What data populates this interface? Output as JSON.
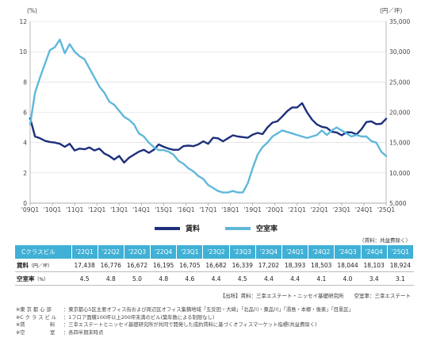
{
  "chart_data": {
    "type": "line",
    "left_unit": "(%)",
    "right_unit": "(円／坪)",
    "left_ylim": [
      0,
      12
    ],
    "left_ticks": [
      "0",
      "2",
      "4",
      "6",
      "8",
      "10",
      "12"
    ],
    "right_ylim": [
      5000,
      35000
    ],
    "right_ticks": [
      "5,000",
      "10,000",
      "15,000",
      "20,000",
      "25,000",
      "30,000",
      "35,000"
    ],
    "x_labels": [
      "'09Q1",
      "'10Q1",
      "'11Q1",
      "'12Q1",
      "'13Q1",
      "'14Q1",
      "'15Q1",
      "'16Q1",
      "'17Q1",
      "'18Q1",
      "'19Q1",
      "'20Q1",
      "'21Q1",
      "'22Q1",
      "'23Q1",
      "'24Q1",
      "'25Q1"
    ],
    "x_start": 2009,
    "x_end": 2025,
    "series": [
      {
        "name": "賃料",
        "axis": "right",
        "color": "#1d2f7c",
        "values": [
          19000,
          16000,
          15700,
          15300,
          15100,
          15000,
          14800,
          14300,
          14800,
          13700,
          14000,
          13900,
          14200,
          13700,
          14000,
          13200,
          12800,
          12200,
          12800,
          11700,
          12500,
          13000,
          13500,
          13800,
          13300,
          13800,
          14700,
          14300,
          14000,
          13800,
          13800,
          14400,
          14500,
          14400,
          14700,
          15200,
          14800,
          15800,
          15700,
          15200,
          15700,
          16200,
          16000,
          15900,
          15800,
          16300,
          16600,
          16400,
          17500,
          18300,
          18500,
          19300,
          20200,
          20800,
          20800,
          21500,
          20000,
          18800,
          18000,
          17600,
          17438,
          16776,
          16672,
          16195,
          16705,
          16682,
          16339,
          17202,
          18393,
          18503,
          18044,
          18103,
          18924
        ]
      },
      {
        "name": "空室率",
        "axis": "left",
        "color": "#5fb8db",
        "values": [
          5.2,
          7.3,
          8.3,
          9.2,
          10.1,
          10.3,
          10.8,
          9.9,
          10.5,
          10.0,
          9.7,
          9.5,
          8.9,
          8.3,
          7.7,
          7.3,
          6.7,
          6.5,
          6.1,
          5.7,
          5.5,
          5.2,
          4.6,
          4.4,
          4.0,
          3.7,
          3.5,
          3.5,
          3.4,
          3.2,
          2.8,
          2.6,
          2.3,
          2.1,
          1.8,
          1.6,
          1.2,
          1.0,
          0.8,
          0.7,
          0.7,
          0.8,
          0.7,
          0.7,
          1.3,
          2.3,
          3.2,
          3.7,
          4.0,
          4.4,
          4.6,
          4.8,
          4.7,
          4.6,
          4.5,
          4.4,
          4.3,
          4.4,
          4.5,
          4.8,
          4.5,
          4.8,
          5.0,
          4.8,
          4.6,
          4.4,
          4.5,
          4.4,
          4.4,
          4.1,
          4.0,
          3.4,
          3.1
        ]
      }
    ],
    "grid": true
  },
  "legend": {
    "rent": "賃料",
    "vacancy": "空室率"
  },
  "table": {
    "source_top": "（賃料：共益費除く）",
    "header": "Cクラスビル",
    "quarters": [
      "'22Q1",
      "'22Q2",
      "'22Q3",
      "'22Q4",
      "'23Q1",
      "'23Q2",
      "'23Q3",
      "'23Q4",
      "'24Q1",
      "'24Q2",
      "'24Q3",
      "'24Q4",
      "'25Q1"
    ],
    "rent_label": "賃料",
    "rent_unit": "（円／坪）",
    "rent": [
      "17,438",
      "16,776",
      "16,672",
      "16,195",
      "16,705",
      "16,682",
      "16,339",
      "17,202",
      "18,393",
      "18,503",
      "18,044",
      "18,103",
      "18,924"
    ],
    "vacancy_label": "空室率",
    "vacancy_unit": "（%）",
    "vacancy": [
      "4.5",
      "4.8",
      "5.0",
      "4.8",
      "4.6",
      "4.4",
      "4.5",
      "4.4",
      "4.4",
      "4.1",
      "4.0",
      "3.4",
      "3.1"
    ]
  },
  "source": "【出所】賃料：三幸エステート・ニッセイ基礎研究所　　空室率：三幸エステート",
  "notes": [
    {
      "key": "※東 京 都 心 部",
      "text": "：東京都心5区主要オフィス街および周辺区オフィス集積地域「五反田・大崎」「北品川・東品川」「湯島・本郷・後楽」「目黒区」"
    },
    {
      "key": "※C ク ラ ス ビ ル",
      "text": "：1フロア面積100坪以上200坪未満のビル(築年数による制限なし)"
    },
    {
      "key": "※賃　　　　　料",
      "text": "：三幸エステートとニッセイ基礎研究所が共同で開発した成約賃料に基づくオフィスマーケット指標(共益費除く)"
    },
    {
      "key": "※空　　　　　室",
      "text": "：各四半期末時点"
    }
  ]
}
